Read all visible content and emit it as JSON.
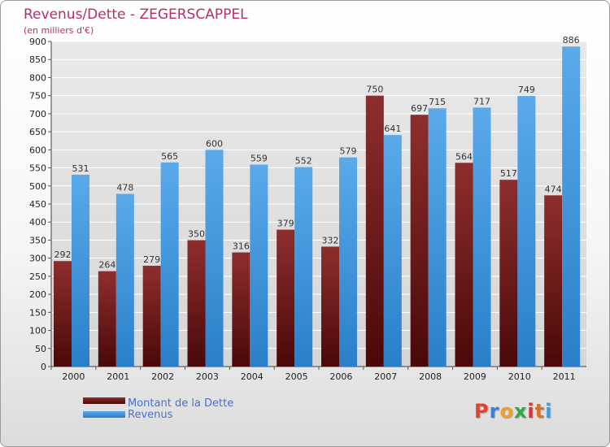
{
  "colors": {
    "dette_top": "#8e2e2e",
    "dette_bottom": "#4a0808",
    "revenus_top": "#5aaaea",
    "revenus_bottom": "#2a7fc8",
    "title": "#b0306a"
  },
  "logo": {
    "text": "Proxiti",
    "letter_colors": [
      "#e8412a",
      "#3b7fd6",
      "#f0a020",
      "#33a845",
      "#d9342b",
      "#e07020",
      "#3aa0d8"
    ]
  },
  "chart_data": {
    "type": "bar",
    "title": "Revenus/Dette - ZEGERSCAPPEL",
    "subtitle": "(en milliers d'€)",
    "categories": [
      "2000",
      "2001",
      "2002",
      "2003",
      "2004",
      "2005",
      "2006",
      "2007",
      "2008",
      "2009",
      "2010",
      "2011"
    ],
    "series": [
      {
        "name": "Montant de la Dette",
        "values": [
          292,
          264,
          279,
          350,
          316,
          379,
          332,
          750,
          697,
          564,
          517,
          474
        ]
      },
      {
        "name": "Revenus",
        "values": [
          531,
          478,
          565,
          600,
          559,
          552,
          579,
          641,
          715,
          717,
          749,
          886
        ]
      }
    ],
    "ylim": [
      0,
      900
    ],
    "yticks": [
      0,
      50,
      100,
      150,
      200,
      250,
      300,
      350,
      400,
      450,
      500,
      550,
      600,
      650,
      700,
      750,
      800,
      850,
      900
    ],
    "grid": true,
    "legend_position": "bottom-left"
  }
}
